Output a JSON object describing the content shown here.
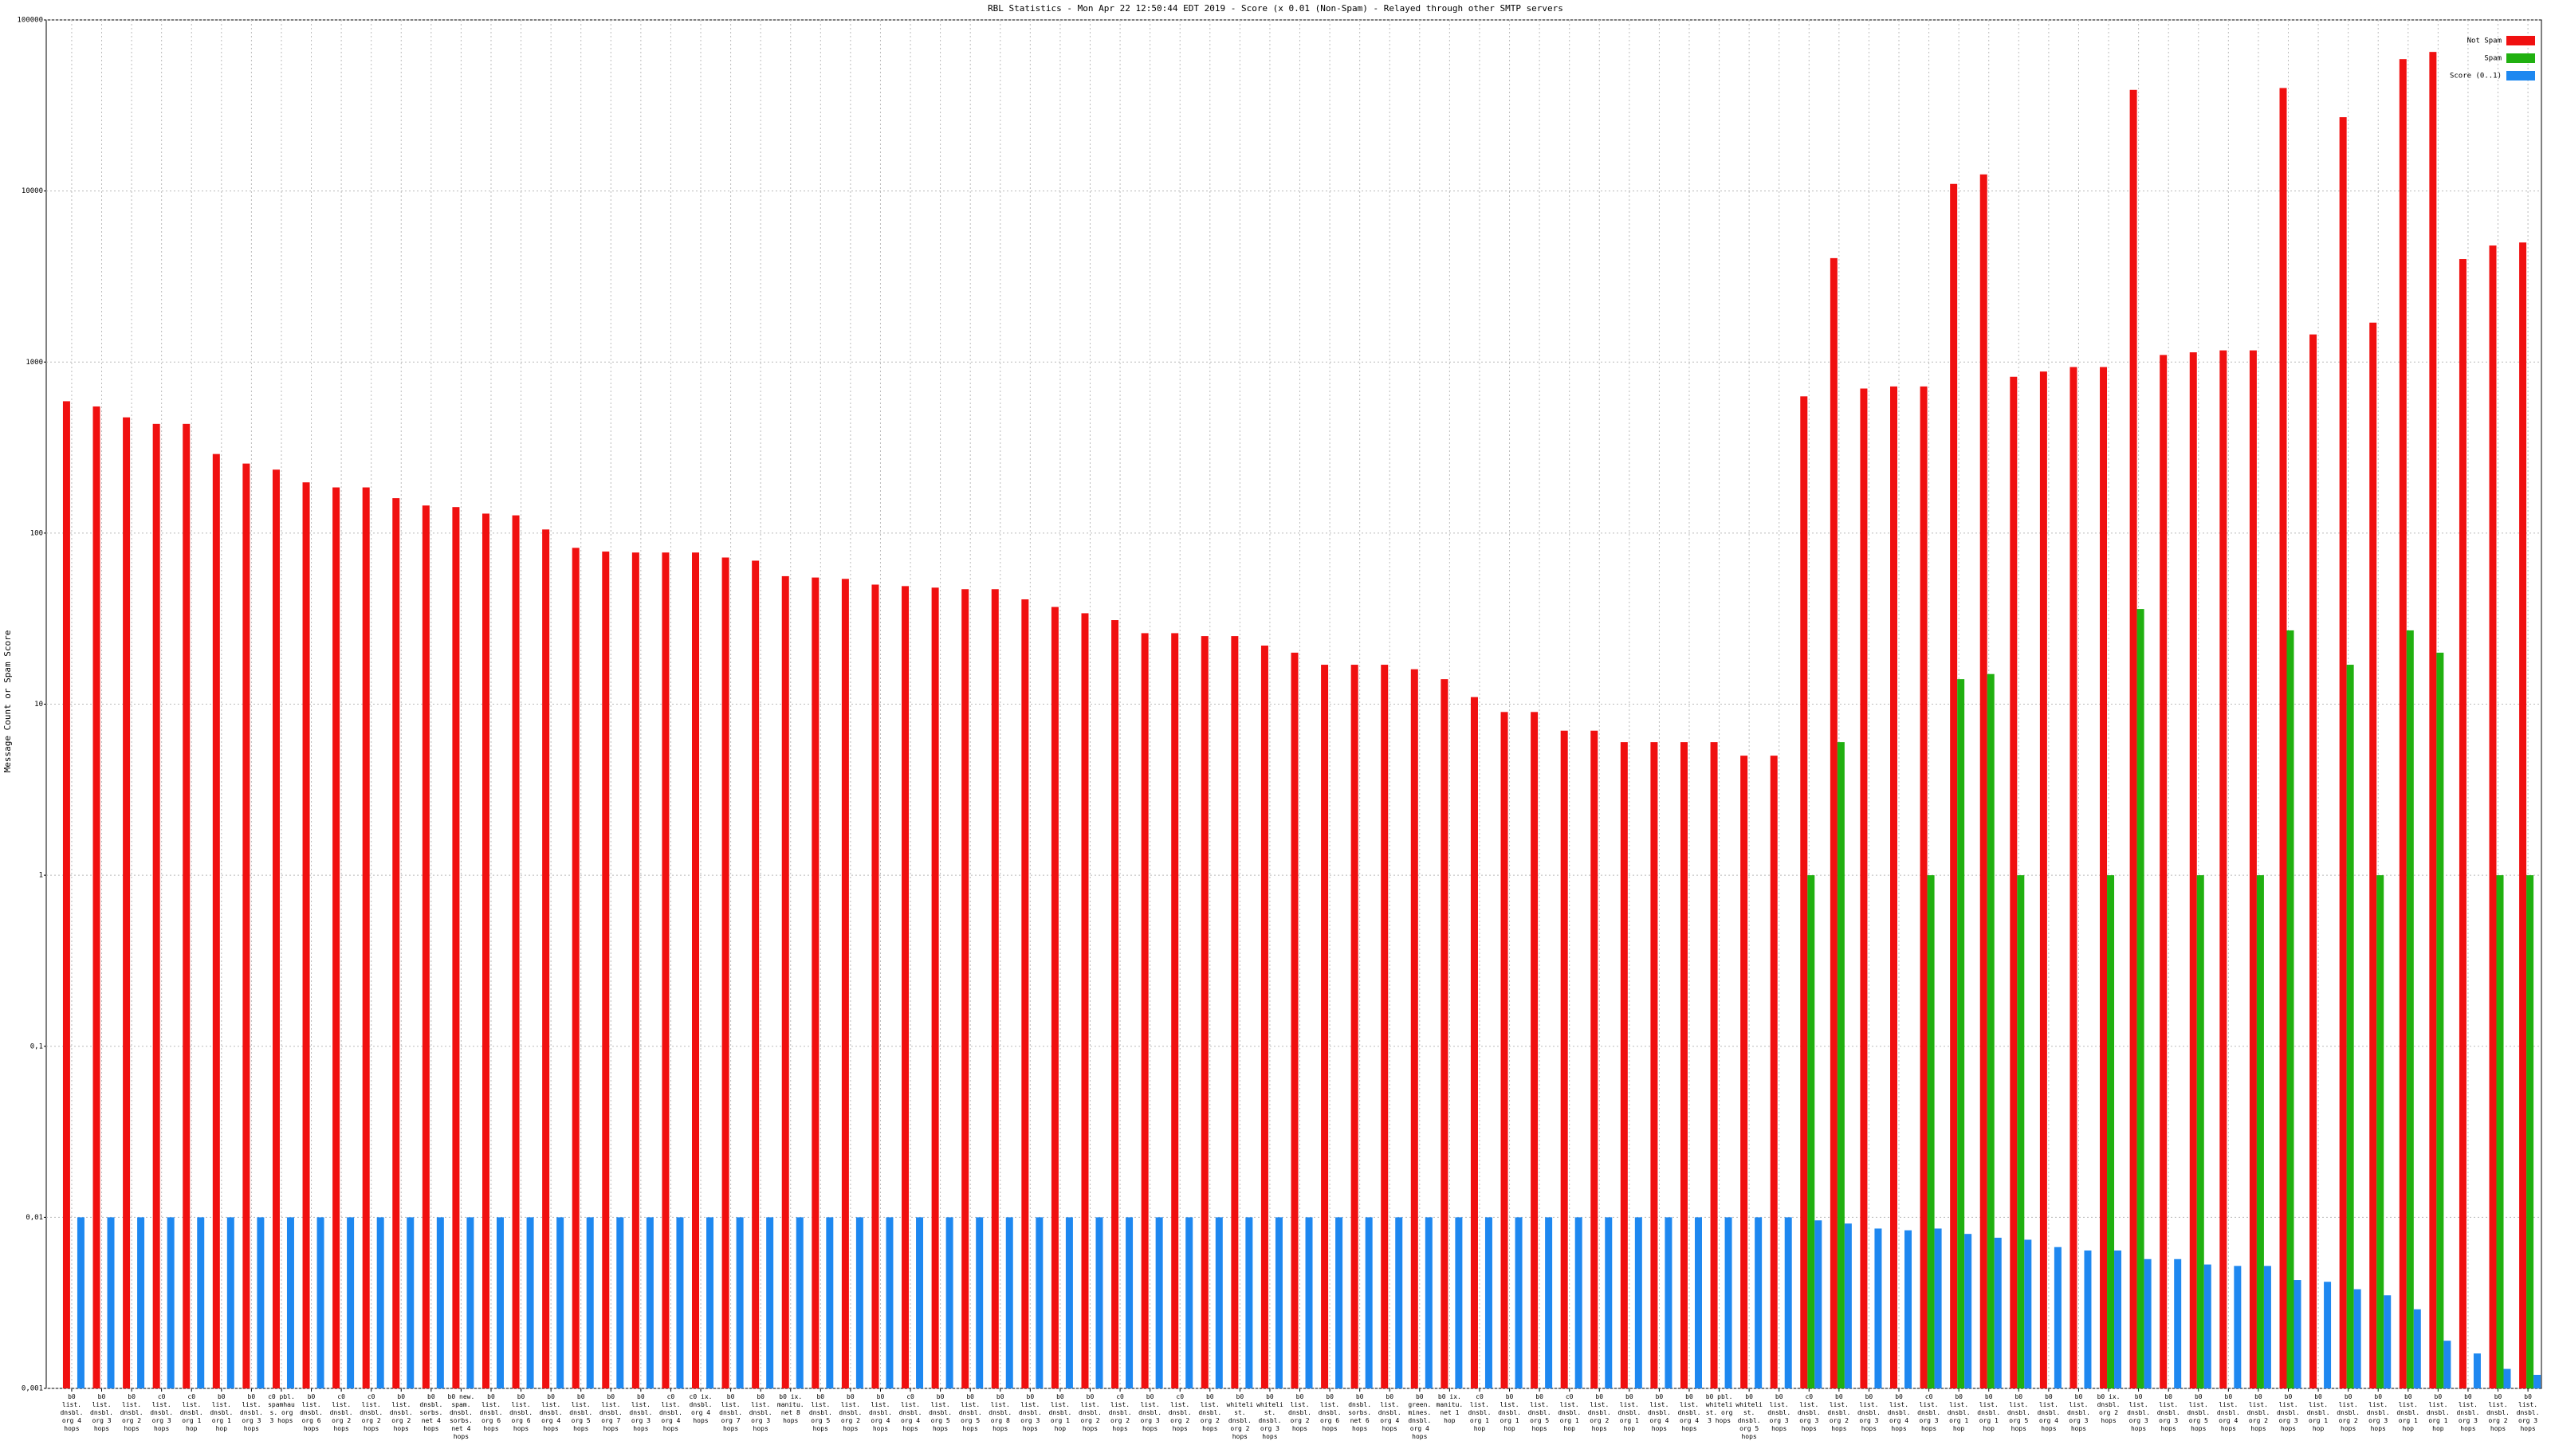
{
  "chart_data": {
    "type": "bar",
    "log_scale": true,
    "grid": true,
    "legend_position": "top-right",
    "title": "RBL Statistics - Mon Apr 22 12:50:44 EDT 2019 - Score (x 0.01 (Non-Spam) - Relayed through other SMTP servers",
    "y_label": "Message Count or Spam Score",
    "ylim": [
      0.001,
      100000
    ],
    "yticks": [
      {
        "value": 0.001,
        "label": "0,001"
      },
      {
        "value": 0.01,
        "label": "0,01"
      },
      {
        "value": 0.1,
        "label": "0,1"
      },
      1,
      10,
      100,
      1000,
      10000,
      100000
    ],
    "categories": [
      "b0 list. dnsbl. org 4 hops",
      "b0 list. dnsbl. org 3 hops",
      "b0 list. dnsbl. org 2 hops",
      "c0 list. dnsbl. org 3 hops",
      "c0 list. dnsbl. org 1 hop",
      "b0 list. dnsbl. org 1 hop",
      "b0 list. dnsbl. org 3 hops",
      "c0 pbl. spamhaus. org 3 hops",
      "b0 list. dnsbl. org 6 hops",
      "c0 list. dnsbl. org 2 hops",
      "c0 list. dnsbl. org 2 hops",
      "b0 list. dnsbl. org 2 hops",
      "b0 dnsbl. sorbs. net 4 hops",
      "b0 new. spam. dnsbl. sorbs. net 4 hops",
      "b0 list. dnsbl. org 6 hops",
      "b0 list. dnsbl. org 6 hops",
      "b0 list. dnsbl. org 4 hops",
      "b0 list. dnsbl. org 5 hops",
      "b0 list. dnsbl. org 7 hops",
      "b0 list. dnsbl. org 3 hops",
      "c0 list. dnsbl. org 4 hops",
      "c0 ix. dnsbl. org 4 hops",
      "b0 list. dnsbl. org 7 hops",
      "b0 list. dnsbl. org 3 hops",
      "b0 ix. manitu. net 8 hops",
      "b0 list. dnsbl. org 5 hops",
      "b0 list. dnsbl. org 2 hops",
      "b0 list. dnsbl. org 4 hops",
      "c0 list. dnsbl. org 4 hops",
      "b0 list. dnsbl. org 5 hops",
      "b0 list. dnsbl. org 5 hops",
      "b0 list. dnsbl. org 8 hops",
      "b0 list. dnsbl. org 3 hops",
      "b0 list. dnsbl. org 1 hop",
      "b0 list. dnsbl. org 2 hops",
      "c0 list. dnsbl. org 2 hops",
      "b0 list. dnsbl. org 3 hops",
      "c0 list. dnsbl. org 2 hops",
      "b0 list. dnsbl. org 2 hops",
      "b0 whitelist. dnsbl. org 2 hops",
      "b0 whitelist. dnsbl. org 3 hops",
      "b0 list. dnsbl. org 2 hops",
      "b0 list. dnsbl. org 6 hops",
      "b0 dnsbl. sorbs. net 6 hops",
      "b0 list. dnsbl. org 4 hops",
      "b0 green. mines. dnsbl. org 4 hops",
      "b0 ix. manitu. net 1 hop",
      "c0 list. dnsbl. org 1 hop",
      "b0 list. dnsbl. org 1 hop",
      "b0 list. dnsbl. org 5 hops",
      "c0 list. dnsbl. org 1 hop",
      "b0 list. dnsbl. org 2 hops",
      "b0 list. dnsbl. org 1 hop",
      "b0 list. dnsbl. org 4 hops",
      "b0 list. dnsbl. org 4 hops",
      "b0 pbl. whitelist. org 3 hops",
      "b0 whitelist. dnsbl. org 5 hops",
      "b0 list. dnsbl. org 3 hops",
      "c0 list. dnsbl. org 3 hops",
      "b0 list. dnsbl. org 2 hops",
      "b0 list. dnsbl. org 3 hops",
      "b0 list. dnsbl. org 4 hops",
      "c0 list. dnsbl. org 3 hops",
      "b0 list. dnsbl. org 1 hop",
      "b0 list. dnsbl. org 1 hop",
      "b0 list. dnsbl. org 5 hops",
      "b0 list. dnsbl. org 4 hops",
      "b0 list. dnsbl. org 3 hops",
      "b0 ix. dnsbl. org 2 hops",
      "b0 list. dnsbl. org 3 hops",
      "b0 list. dnsbl. org 3 hops",
      "b0 list. dnsbl. org 5 hops",
      "b0 list. dnsbl. org 4 hops",
      "b0 list. dnsbl. org 2 hops",
      "b0 list. dnsbl. org 3 hops",
      "b0 list. dnsbl. org 1 hop",
      "b0 list. dnsbl. org 2 hops",
      "b0 list. dnsbl. org 3 hops",
      "b0 list. dnsbl. org 1 hop",
      "b0 list. dnsbl. org 1 hop",
      "b0 list. dnsbl. org 3 hops",
      "b0 list. dnsbl. org 2 hops",
      "b0 list. dnsbl. org 3 hops"
    ],
    "series": [
      {
        "name": "Not Spam",
        "color": "#f01010",
        "values": [
          590,
          550,
          475,
          435,
          435,
          290,
          255,
          235,
          198,
          185,
          185,
          160,
          145,
          142,
          130,
          127,
          105,
          82,
          78,
          77,
          77,
          77,
          72,
          69,
          56,
          55,
          54,
          50,
          49,
          48,
          47,
          47,
          41,
          37,
          34,
          31,
          26,
          26,
          25,
          25,
          22,
          20,
          17,
          17,
          17,
          16,
          14,
          11,
          9,
          9,
          7,
          7,
          6,
          6,
          6,
          6,
          5,
          5,
          630,
          4050,
          700,
          720,
          720,
          11000,
          12500,
          820,
          880,
          935,
          935,
          39000,
          1100,
          1140,
          1170,
          1170,
          40000,
          1450,
          27000,
          1700,
          59000,
          65000,
          4000,
          4800,
          5000
        ]
      },
      {
        "name": "Spam",
        "color": "#20b010",
        "values": [
          null,
          null,
          null,
          null,
          null,
          null,
          null,
          null,
          null,
          null,
          null,
          null,
          null,
          null,
          null,
          null,
          null,
          null,
          null,
          null,
          null,
          null,
          null,
          null,
          null,
          null,
          null,
          null,
          null,
          null,
          null,
          null,
          null,
          null,
          null,
          null,
          null,
          null,
          null,
          null,
          null,
          null,
          null,
          null,
          null,
          null,
          null,
          null,
          null,
          null,
          null,
          null,
          null,
          null,
          null,
          null,
          null,
          null,
          1,
          6,
          null,
          null,
          1,
          14,
          15,
          1,
          null,
          null,
          1,
          36,
          null,
          1,
          null,
          1,
          27,
          null,
          17,
          1,
          27,
          20,
          null,
          1,
          1
        ]
      },
      {
        "name": "Score (0..1)",
        "color": "#1e88f0",
        "values": [
          0.01,
          0.01,
          0.01,
          0.01,
          0.01,
          0.01,
          0.01,
          0.01,
          0.01,
          0.01,
          0.01,
          0.01,
          0.01,
          0.01,
          0.01,
          0.01,
          0.01,
          0.01,
          0.01,
          0.01,
          0.01,
          0.01,
          0.01,
          0.01,
          0.01,
          0.01,
          0.01,
          0.01,
          0.01,
          0.01,
          0.01,
          0.01,
          0.01,
          0.01,
          0.01,
          0.01,
          0.01,
          0.01,
          0.01,
          0.01,
          0.01,
          0.01,
          0.01,
          0.01,
          0.01,
          0.01,
          0.01,
          0.01,
          0.01,
          0.01,
          0.01,
          0.01,
          0.01,
          0.01,
          0.01,
          0.01,
          0.01,
          0.01,
          0.0096,
          0.0092,
          0.0086,
          0.0084,
          0.0086,
          0.008,
          0.0076,
          0.0074,
          0.0067,
          0.0064,
          0.0064,
          0.0057,
          0.0057,
          0.0053,
          0.0052,
          0.0052,
          0.0043,
          0.0042,
          0.0038,
          0.0035,
          0.0029,
          0.0019,
          0.0016,
          0.0013,
          0.0012
        ]
      }
    ]
  }
}
